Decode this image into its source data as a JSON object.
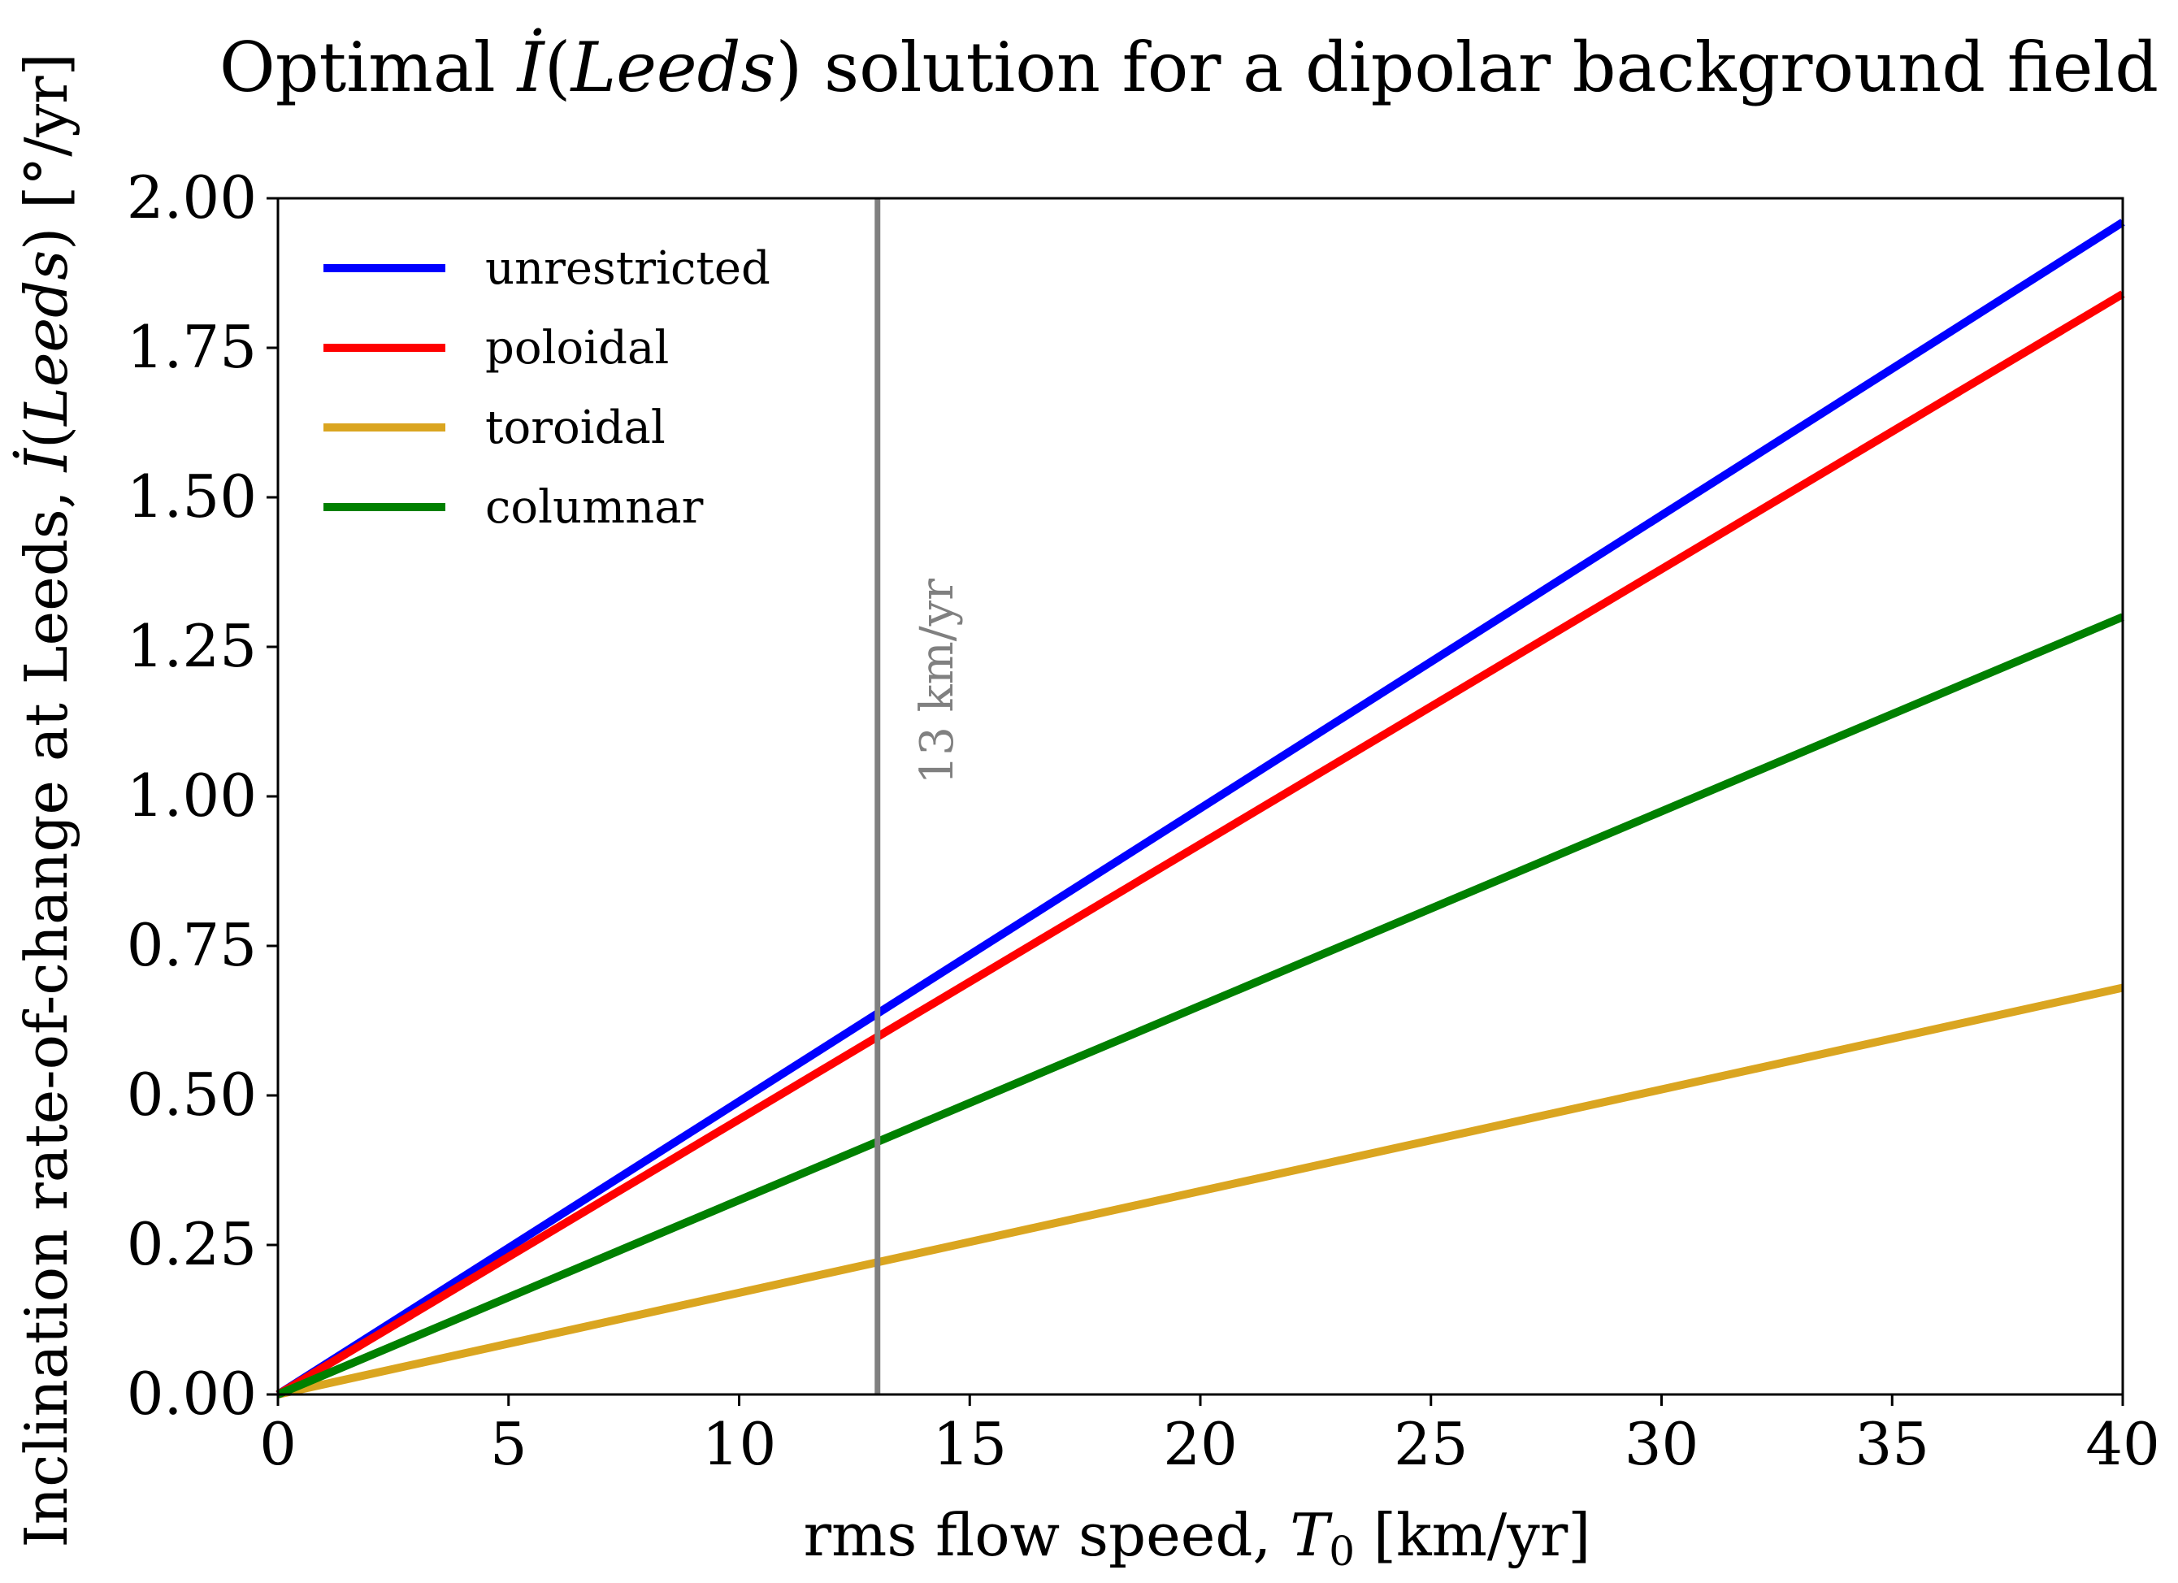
{
  "chart_data": {
    "type": "line",
    "title": {
      "pre": "Optimal ",
      "sym": "İ",
      "open": "(",
      "site": "Leeds",
      "post": ") solution for a dipolar background field"
    },
    "xlabel": {
      "pre": "rms flow speed, ",
      "sym": "T",
      "sub": "0",
      "post": " [km/yr]"
    },
    "ylabel": {
      "pre": "Inclination rate-of-change at Leeds, ",
      "sym": "İ",
      "open": "(",
      "site": "Leeds",
      "post": ") [°/yr]"
    },
    "xlim": [
      0,
      40
    ],
    "ylim": [
      0,
      2.0
    ],
    "x_ticks": [
      "0",
      "5",
      "10",
      "15",
      "20",
      "25",
      "30",
      "35",
      "40"
    ],
    "y_ticks": [
      "0.00",
      "0.25",
      "0.50",
      "0.75",
      "1.00",
      "1.25",
      "1.50",
      "1.75",
      "2.00"
    ],
    "grid": false,
    "legend_position": "top-left",
    "series": [
      {
        "name": "unrestricted",
        "color": "#0000ff",
        "x": [
          0,
          40
        ],
        "y": [
          0,
          1.96
        ]
      },
      {
        "name": "poloidal",
        "color": "#ff0000",
        "x": [
          0,
          40
        ],
        "y": [
          0,
          1.84
        ]
      },
      {
        "name": "toroidal",
        "color": "#daa520",
        "x": [
          0,
          40
        ],
        "y": [
          0,
          0.68
        ]
      },
      {
        "name": "columnar",
        "color": "#008000",
        "x": [
          0,
          40
        ],
        "y": [
          0,
          1.3
        ]
      }
    ],
    "vline": {
      "x": 13,
      "label": "13 km/yr",
      "color": "#808080"
    }
  }
}
